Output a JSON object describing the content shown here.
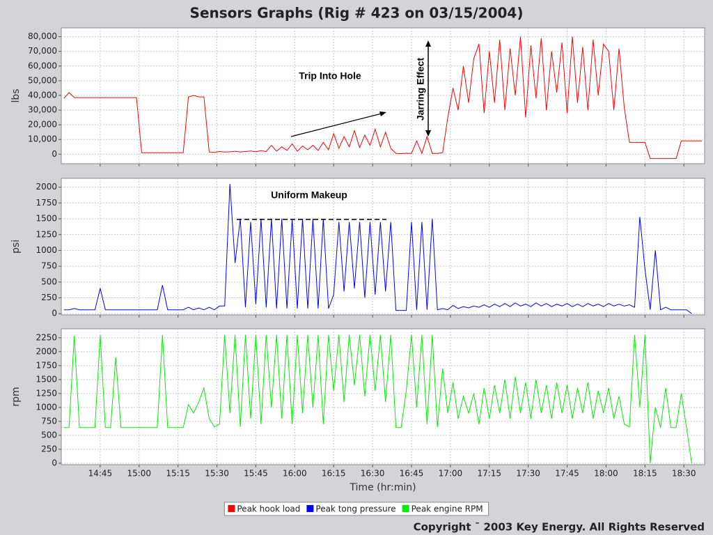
{
  "title": "Sensors Graphs (Rig # 423 on 03/15/2004)",
  "footer": "Copyright ¯ 2003 Key Energy. All Rights Reserved",
  "chart_data": [
    {
      "type": "line",
      "ylabel": "lbs",
      "annotations": [
        "Trip Into Hole",
        "Jarring Effect"
      ],
      "grid": true,
      "x": [
        871,
        873,
        875,
        877,
        879,
        881,
        883,
        885,
        887,
        889,
        891,
        893,
        895,
        897,
        899,
        901,
        903,
        905,
        907,
        909,
        911,
        913,
        915,
        917,
        919,
        921,
        923,
        925,
        927,
        929,
        931,
        933,
        935,
        937,
        939,
        941,
        943,
        945,
        947,
        949,
        951,
        953,
        955,
        957,
        959,
        961,
        963,
        965,
        967,
        969,
        971,
        973,
        975,
        977,
        979,
        981,
        983,
        985,
        987,
        989,
        991,
        993,
        995,
        997,
        999,
        1001,
        1003,
        1005,
        1007,
        1009,
        1011,
        1013,
        1015,
        1017,
        1019,
        1021,
        1023,
        1025,
        1027,
        1029,
        1031,
        1033,
        1035,
        1037,
        1039,
        1041,
        1043,
        1045,
        1047,
        1049,
        1051,
        1053,
        1055,
        1057,
        1059,
        1061,
        1063,
        1065,
        1067,
        1069,
        1071,
        1073,
        1075,
        1077,
        1079,
        1081,
        1083,
        1085,
        1087,
        1089,
        1091,
        1093,
        1095,
        1097,
        1099,
        1101,
        1103,
        1105,
        1107,
        1109,
        1111,
        1113,
        1115,
        1117
      ],
      "ylim": [
        -6500,
        86000
      ],
      "yticks": [
        0,
        {
          "value": 10000,
          "label": "10,000"
        },
        {
          "value": 20000,
          "label": "20,000"
        },
        {
          "value": 30000,
          "label": "30,000"
        },
        {
          "value": 40000,
          "label": "40,000"
        },
        {
          "value": 50000,
          "label": "50,000"
        },
        {
          "value": 60000,
          "label": "60,000"
        },
        {
          "value": 70000,
          "label": "70,000"
        },
        {
          "value": 80000,
          "label": "80,000"
        }
      ],
      "series": [
        {
          "name": "Peak hook load",
          "color": "#ff0000",
          "values": [
            38000,
            42000,
            38500,
            38500,
            38500,
            38500,
            38500,
            38500,
            38500,
            38500,
            38500,
            38500,
            38500,
            38500,
            38500,
            1000,
            1000,
            1000,
            1000,
            1000,
            1000,
            1000,
            1000,
            1000,
            39000,
            40000,
            39000,
            39000,
            1500,
            1200,
            1800,
            1400,
            1600,
            2000,
            1500,
            1800,
            2200,
            1600,
            2400,
            1800,
            6000,
            2000,
            5000,
            2500,
            7000,
            2000,
            5500,
            3000,
            6000,
            2500,
            8000,
            3000,
            14000,
            4000,
            12000,
            5000,
            16000,
            4500,
            13000,
            6000,
            17000,
            5000,
            15000,
            4000,
            500,
            400,
            600,
            500,
            9000,
            500,
            12000,
            500,
            500,
            1000,
            25000,
            45000,
            30000,
            60000,
            35000,
            65000,
            75000,
            28000,
            70000,
            35000,
            78000,
            30000,
            72000,
            40000,
            80000,
            25000,
            74000,
            38000,
            79000,
            30000,
            70000,
            42000,
            76000,
            28000,
            80000,
            35000,
            73000,
            30000,
            78000,
            40000,
            75000,
            70000,
            30000,
            72000,
            32000,
            8000,
            8000,
            8000,
            8000,
            -3000,
            -3000,
            -3000,
            -3000,
            -3000,
            -3000,
            9000,
            9000,
            9000,
            9000,
            9000
          ]
        }
      ]
    },
    {
      "type": "line",
      "ylabel": "psi",
      "annotations": [
        "Uniform Makeup"
      ],
      "grid": true,
      "x": [
        871,
        873,
        875,
        877,
        879,
        881,
        883,
        885,
        887,
        889,
        891,
        893,
        895,
        897,
        899,
        901,
        903,
        905,
        907,
        909,
        911,
        913,
        915,
        917,
        919,
        921,
        923,
        925,
        927,
        929,
        931,
        933,
        935,
        937,
        939,
        941,
        943,
        945,
        947,
        949,
        951,
        953,
        955,
        957,
        959,
        961,
        963,
        965,
        967,
        969,
        971,
        973,
        975,
        977,
        979,
        981,
        983,
        985,
        987,
        989,
        991,
        993,
        995,
        997,
        999,
        1001,
        1003,
        1005,
        1007,
        1009,
        1011,
        1013,
        1015,
        1017,
        1019,
        1021,
        1023,
        1025,
        1027,
        1029,
        1031,
        1033,
        1035,
        1037,
        1039,
        1041,
        1043,
        1045,
        1047,
        1049,
        1051,
        1053,
        1055,
        1057,
        1059,
        1061,
        1063,
        1065,
        1067,
        1069,
        1071,
        1073,
        1075,
        1077,
        1079,
        1081,
        1083,
        1085,
        1087,
        1089,
        1091,
        1093,
        1095,
        1097,
        1099,
        1101,
        1103,
        1105,
        1107,
        1109,
        1111,
        1113,
        1115,
        1117
      ],
      "ylim": [
        -20,
        2140
      ],
      "yticks": [
        0,
        250,
        500,
        750,
        1000,
        1250,
        1500,
        1750,
        2000
      ],
      "series": [
        {
          "name": "Peak tong pressure",
          "color": "#0000ff",
          "values": [
            60,
            60,
            80,
            60,
            60,
            60,
            60,
            400,
            60,
            60,
            60,
            60,
            60,
            60,
            60,
            60,
            60,
            60,
            60,
            450,
            60,
            60,
            60,
            60,
            100,
            60,
            90,
            60,
            100,
            60,
            120,
            120,
            2050,
            800,
            1500,
            100,
            1450,
            150,
            1500,
            100,
            1500,
            80,
            1500,
            80,
            1500,
            80,
            1500,
            80,
            1500,
            80,
            1500,
            80,
            300,
            1450,
            350,
            1450,
            400,
            1450,
            250,
            1450,
            300,
            1450,
            350,
            1450,
            50,
            50,
            50,
            1450,
            60,
            1450,
            60,
            1500,
            60,
            80,
            60,
            130,
            80,
            110,
            90,
            120,
            100,
            140,
            100,
            150,
            110,
            160,
            110,
            170,
            120,
            150,
            110,
            170,
            120,
            160,
            110,
            150,
            120,
            160,
            110,
            150,
            110,
            160,
            120,
            150,
            110,
            160,
            120,
            150,
            120,
            140,
            100,
            1530,
            700,
            60,
            1000,
            60,
            100,
            60,
            60,
            60,
            60,
            0,
            null,
            null
          ]
        }
      ]
    },
    {
      "type": "line",
      "ylabel": "rpm",
      "xlabel": "Time (hr:min)",
      "grid": true,
      "xlim": [
        870,
        1118
      ],
      "xticks": [
        {
          "value": 885,
          "label": "14:45"
        },
        {
          "value": 900,
          "label": "15:00"
        },
        {
          "value": 915,
          "label": "15:15"
        },
        {
          "value": 930,
          "label": "15:30"
        },
        {
          "value": 945,
          "label": "15:45"
        },
        {
          "value": 960,
          "label": "16:00"
        },
        {
          "value": 975,
          "label": "16:15"
        },
        {
          "value": 990,
          "label": "16:30"
        },
        {
          "value": 1005,
          "label": "16:45"
        },
        {
          "value": 1020,
          "label": "17:00"
        },
        {
          "value": 1035,
          "label": "17:15"
        },
        {
          "value": 1050,
          "label": "17:30"
        },
        {
          "value": 1065,
          "label": "17:45"
        },
        {
          "value": 1080,
          "label": "18:00"
        },
        {
          "value": 1095,
          "label": "18:15"
        },
        {
          "value": 1110,
          "label": "18:30"
        }
      ],
      "x": [
        871,
        873,
        875,
        877,
        879,
        881,
        883,
        885,
        887,
        889,
        891,
        893,
        895,
        897,
        899,
        901,
        903,
        905,
        907,
        909,
        911,
        913,
        915,
        917,
        919,
        921,
        923,
        925,
        927,
        929,
        931,
        933,
        935,
        937,
        939,
        941,
        943,
        945,
        947,
        949,
        951,
        953,
        955,
        957,
        959,
        961,
        963,
        965,
        967,
        969,
        971,
        973,
        975,
        977,
        979,
        981,
        983,
        985,
        987,
        989,
        991,
        993,
        995,
        997,
        999,
        1001,
        1003,
        1005,
        1007,
        1009,
        1011,
        1013,
        1015,
        1017,
        1019,
        1021,
        1023,
        1025,
        1027,
        1029,
        1031,
        1033,
        1035,
        1037,
        1039,
        1041,
        1043,
        1045,
        1047,
        1049,
        1051,
        1053,
        1055,
        1057,
        1059,
        1061,
        1063,
        1065,
        1067,
        1069,
        1071,
        1073,
        1075,
        1077,
        1079,
        1081,
        1083,
        1085,
        1087,
        1089,
        1091,
        1093,
        1095,
        1097,
        1099,
        1101,
        1103,
        1105,
        1107,
        1109,
        1111,
        1113,
        1115,
        1117
      ],
      "ylim": [
        -25,
        2410
      ],
      "yticks": [
        0,
        250,
        500,
        750,
        1000,
        1250,
        1500,
        1750,
        2000,
        2250
      ],
      "series": [
        {
          "name": "Peak engine RPM",
          "color": "#00ee00",
          "values": [
            640,
            640,
            2280,
            640,
            640,
            640,
            640,
            2300,
            640,
            640,
            1900,
            640,
            640,
            640,
            640,
            640,
            640,
            640,
            640,
            2300,
            640,
            640,
            640,
            640,
            1050,
            900,
            1100,
            1350,
            800,
            650,
            700,
            2300,
            900,
            2300,
            650,
            2300,
            800,
            2300,
            700,
            2300,
            1000,
            2300,
            800,
            2300,
            700,
            2300,
            900,
            2300,
            1000,
            2300,
            700,
            2300,
            1300,
            2300,
            1100,
            2300,
            1400,
            2300,
            1200,
            2300,
            1300,
            2300,
            1100,
            2300,
            640,
            640,
            1300,
            2300,
            1000,
            2300,
            700,
            2300,
            650,
            1700,
            900,
            1450,
            800,
            1200,
            900,
            1250,
            700,
            1350,
            800,
            1400,
            900,
            1500,
            800,
            1550,
            900,
            1450,
            800,
            1500,
            900,
            1400,
            800,
            1450,
            900,
            1400,
            800,
            1350,
            900,
            1450,
            800,
            1300,
            900,
            1350,
            800,
            1200,
            700,
            650,
            2300,
            1000,
            2300,
            0,
            1000,
            640,
            1350,
            640,
            640,
            1250,
            640,
            0,
            null,
            null
          ]
        }
      ]
    }
  ]
}
